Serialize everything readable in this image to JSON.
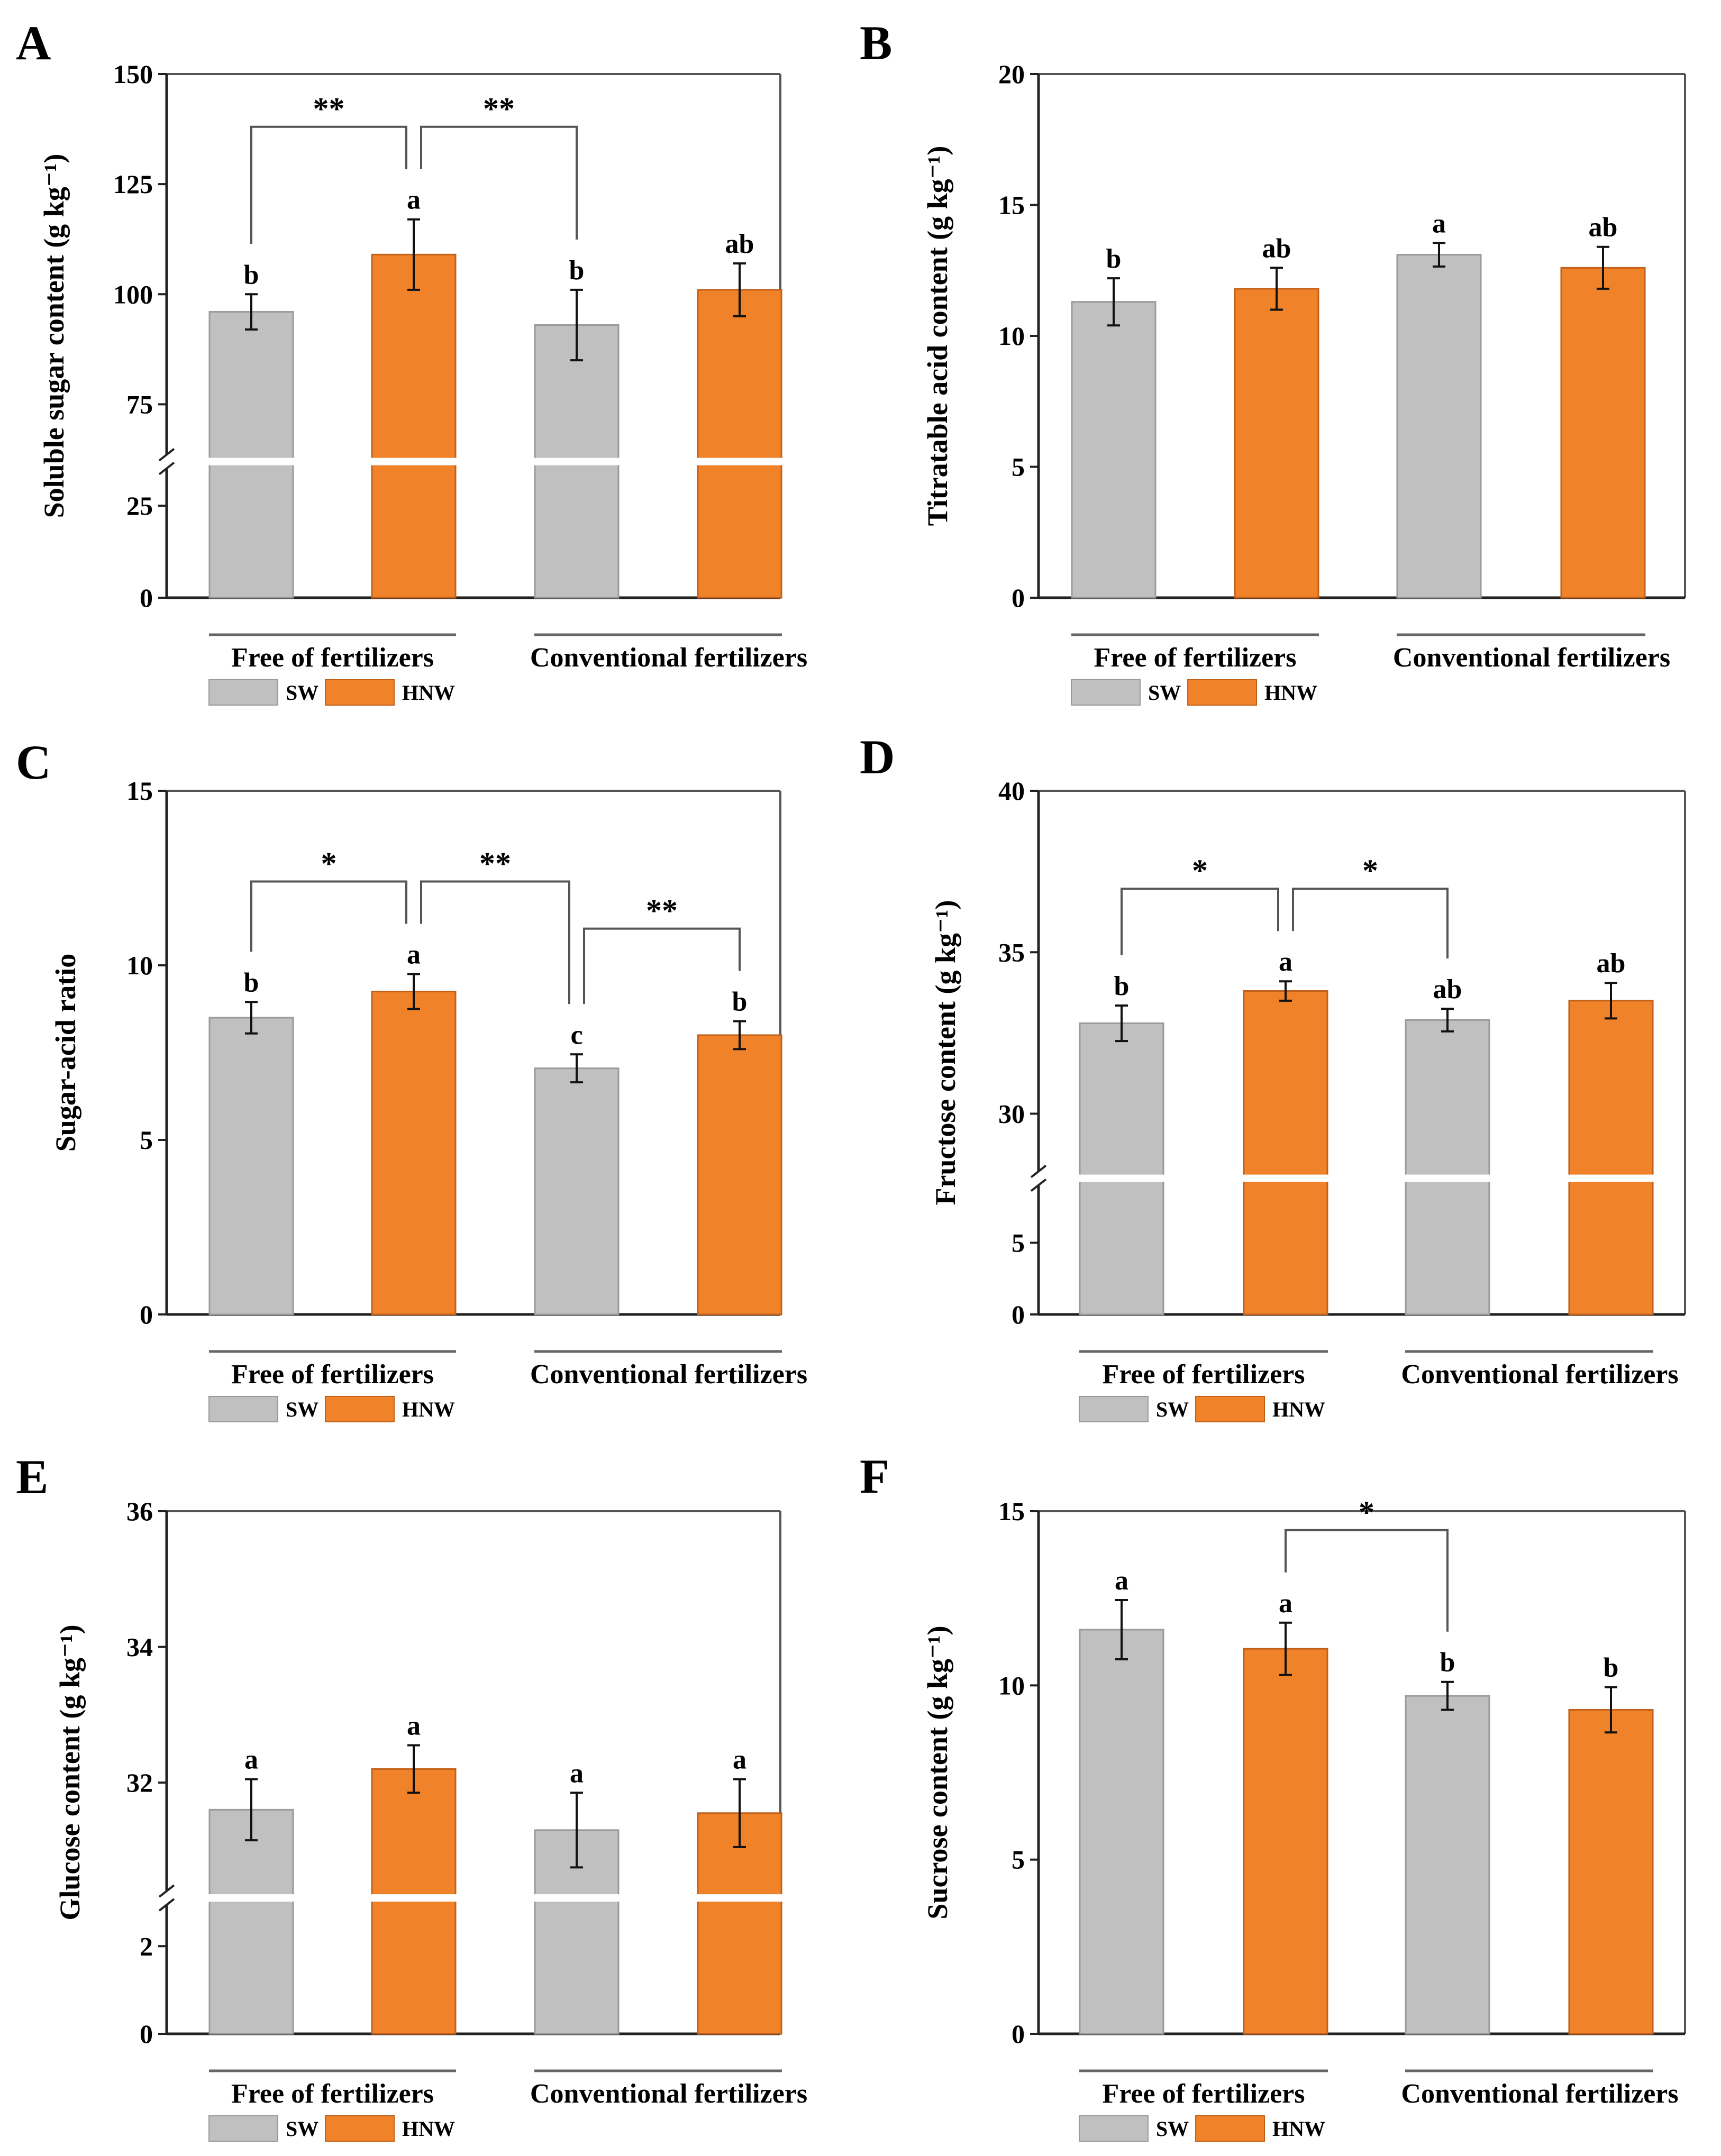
{
  "figure": {
    "background": "#ffffff"
  },
  "colors": {
    "SW": "#c0c0c0",
    "HNW": "#f0832a",
    "SW_stroke": "#9a9a9a",
    "HNW_stroke": "#c2601a"
  },
  "chart_data": [
    {
      "panel": "A",
      "type": "bar",
      "ylabel": "Soluble sugar content (g kg⁻¹)",
      "groups": [
        "Free of fertilizers",
        "Conventional fertilizers"
      ],
      "series_names": [
        "SW",
        "HNW"
      ],
      "categories": [
        "SW | Free of fertilizers",
        "HNW | Free of fertilizers",
        "SW | Conventional fertilizers",
        "HNW | Conventional fertilizers"
      ],
      "values": [
        96,
        109,
        93,
        101
      ],
      "errors": [
        4,
        8,
        8,
        6
      ],
      "letters": [
        "b",
        "a",
        "b",
        "ab"
      ],
      "axis_break": true,
      "ticks_lower": [
        0,
        25
      ],
      "ticks_upper": [
        75,
        100,
        125,
        150
      ],
      "lower_range": [
        0,
        37
      ],
      "upper_range": [
        62,
        150
      ],
      "brackets": [
        {
          "from": 0,
          "to": 1,
          "label": "**"
        },
        {
          "from": 1,
          "to": 2,
          "label": "**"
        }
      ]
    },
    {
      "panel": "B",
      "type": "bar",
      "ylabel": "Titratable acid content (g kg⁻¹)",
      "groups": [
        "Free of fertilizers",
        "Conventional fertilizers"
      ],
      "series_names": [
        "SW",
        "HNW"
      ],
      "categories": [
        "SW | Free of fertilizers",
        "HNW | Free of fertilizers",
        "SW | Conventional fertilizers",
        "HNW | Conventional fertilizers"
      ],
      "values": [
        11.3,
        11.8,
        13.1,
        12.6
      ],
      "errors": [
        0.9,
        0.8,
        0.45,
        0.8
      ],
      "letters": [
        "b",
        "ab",
        "a",
        "ab"
      ],
      "axis_break": false,
      "ylim": [
        0,
        20
      ],
      "ticks": [
        0,
        5,
        10,
        15,
        20
      ],
      "brackets": []
    },
    {
      "panel": "C",
      "type": "bar",
      "ylabel": "Sugar-acid ratio",
      "groups": [
        "Free of fertilizers",
        "Conventional fertilizers"
      ],
      "series_names": [
        "SW",
        "HNW"
      ],
      "categories": [
        "SW | Free of fertilizers",
        "HNW | Free of fertilizers",
        "SW | Conventional fertilizers",
        "HNW | Conventional fertilizers"
      ],
      "values": [
        8.5,
        9.25,
        7.05,
        8.0
      ],
      "errors": [
        0.45,
        0.5,
        0.4,
        0.4
      ],
      "letters": [
        "b",
        "a",
        "c",
        "b"
      ],
      "axis_break": false,
      "ylim": [
        0,
        15
      ],
      "ticks": [
        0,
        5,
        10,
        15
      ],
      "brackets": [
        {
          "from": 0,
          "to": 1,
          "label": "*"
        },
        {
          "from": 1,
          "to": 2,
          "label": "**"
        },
        {
          "from": 2,
          "to": 3,
          "label": "**"
        }
      ]
    },
    {
      "panel": "D",
      "type": "bar",
      "ylabel": "Fructose content (g kg⁻¹)",
      "groups": [
        "Free of fertilizers",
        "Conventional fertilizers"
      ],
      "series_names": [
        "SW",
        "HNW"
      ],
      "categories": [
        "SW | Free of fertilizers",
        "HNW | Free of fertilizers",
        "SW | Conventional fertilizers",
        "HNW | Conventional fertilizers"
      ],
      "values": [
        32.8,
        33.8,
        32.9,
        33.5
      ],
      "errors": [
        0.55,
        0.3,
        0.35,
        0.55
      ],
      "letters": [
        "b",
        "a",
        "ab",
        "ab"
      ],
      "axis_break": true,
      "ticks_lower": [
        0,
        5
      ],
      "ticks_upper": [
        30,
        35,
        40
      ],
      "lower_range": [
        0,
        9.5
      ],
      "upper_range": [
        28,
        40
      ],
      "brackets": [
        {
          "from": 0,
          "to": 1,
          "label": "*"
        },
        {
          "from": 1,
          "to": 2,
          "label": "*"
        }
      ]
    },
    {
      "panel": "E",
      "type": "bar",
      "ylabel": "Glucose content (g kg⁻¹)",
      "groups": [
        "Free of fertilizers",
        "Conventional fertilizers"
      ],
      "series_names": [
        "SW",
        "HNW"
      ],
      "categories": [
        "SW | Free of fertilizers",
        "HNW | Free of fertilizers",
        "SW | Conventional fertilizers",
        "HNW | Conventional fertilizers"
      ],
      "values": [
        31.6,
        32.2,
        31.3,
        31.55
      ],
      "errors": [
        0.45,
        0.35,
        0.55,
        0.5
      ],
      "letters": [
        "a",
        "a",
        "a",
        "a"
      ],
      "axis_break": true,
      "ticks_lower": [
        0,
        2
      ],
      "ticks_upper": [
        32,
        34,
        36
      ],
      "lower_range": [
        0,
        3.1
      ],
      "upper_range": [
        30.3,
        36
      ],
      "brackets": []
    },
    {
      "panel": "F",
      "type": "bar",
      "ylabel": "Sucrose content (g kg⁻¹)",
      "groups": [
        "Free of fertilizers",
        "Conventional fertilizers"
      ],
      "series_names": [
        "SW",
        "HNW"
      ],
      "categories": [
        "SW | Free of fertilizers",
        "HNW | Free of fertilizers",
        "SW | Conventional fertilizers",
        "HNW | Conventional fertilizers"
      ],
      "values": [
        11.6,
        11.05,
        9.7,
        9.3
      ],
      "errors": [
        0.85,
        0.75,
        0.4,
        0.65
      ],
      "letters": [
        "a",
        "a",
        "b",
        "b"
      ],
      "axis_break": false,
      "ylim": [
        0,
        15
      ],
      "ticks": [
        0,
        5,
        10,
        15
      ],
      "brackets": [
        {
          "from": 1,
          "to": 2,
          "label": "*"
        }
      ]
    }
  ]
}
